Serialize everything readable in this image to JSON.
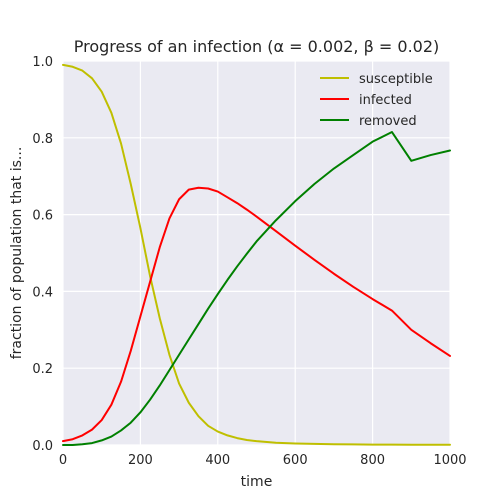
{
  "chart_data": {
    "type": "line",
    "title": "Progress of an infection (α = 0.002, β = 0.02)",
    "xlabel": "time",
    "ylabel": "fraction of population that is...",
    "xlim": [
      0,
      1000
    ],
    "ylim": [
      0,
      1.0
    ],
    "xticks": [
      0,
      200,
      400,
      600,
      800,
      1000
    ],
    "xtick_labels": [
      "0",
      "200",
      "400",
      "600",
      "800",
      "1000"
    ],
    "yticks": [
      0,
      0.2,
      0.4,
      0.6,
      0.8,
      1.0
    ],
    "ytick_labels": [
      "0.0",
      "0.2",
      "0.4",
      "0.6",
      "0.8",
      "1.0"
    ],
    "grid": true,
    "legend_position": "top-right",
    "colors": {
      "background": "#eaeaf2",
      "grid": "#ffffff"
    },
    "x": [
      0,
      25,
      50,
      75,
      100,
      125,
      150,
      175,
      200,
      225,
      250,
      275,
      300,
      325,
      350,
      375,
      400,
      425,
      450,
      475,
      500,
      550,
      600,
      650,
      700,
      750,
      800,
      850,
      900,
      950,
      1000
    ],
    "series": [
      {
        "name": "susceptible",
        "color": "#bfbf00",
        "values": [
          0.99,
          0.985,
          0.975,
          0.955,
          0.92,
          0.865,
          0.785,
          0.68,
          0.565,
          0.44,
          0.33,
          0.235,
          0.16,
          0.11,
          0.075,
          0.05,
          0.035,
          0.025,
          0.018,
          0.013,
          0.01,
          0.006,
          0.004,
          0.003,
          0.002,
          0.0015,
          0.001,
          0.001,
          0.0008,
          0.0006,
          0.0005
        ]
      },
      {
        "name": "infected",
        "color": "#ff0000",
        "values": [
          0.01,
          0.015,
          0.025,
          0.04,
          0.065,
          0.105,
          0.165,
          0.245,
          0.335,
          0.425,
          0.515,
          0.59,
          0.64,
          0.665,
          0.67,
          0.668,
          0.66,
          0.645,
          0.63,
          0.613,
          0.595,
          0.557,
          0.519,
          0.482,
          0.446,
          0.412,
          0.38,
          0.35,
          0.3,
          0.265,
          0.232
        ]
      },
      {
        "name": "removed",
        "color": "#008000",
        "values": [
          0.0,
          0.0,
          0.002,
          0.005,
          0.012,
          0.022,
          0.038,
          0.058,
          0.085,
          0.118,
          0.155,
          0.195,
          0.235,
          0.275,
          0.315,
          0.355,
          0.393,
          0.43,
          0.465,
          0.498,
          0.53,
          0.585,
          0.635,
          0.68,
          0.72,
          0.755,
          0.79,
          0.815,
          0.74,
          0.755,
          0.767
        ]
      }
    ]
  }
}
